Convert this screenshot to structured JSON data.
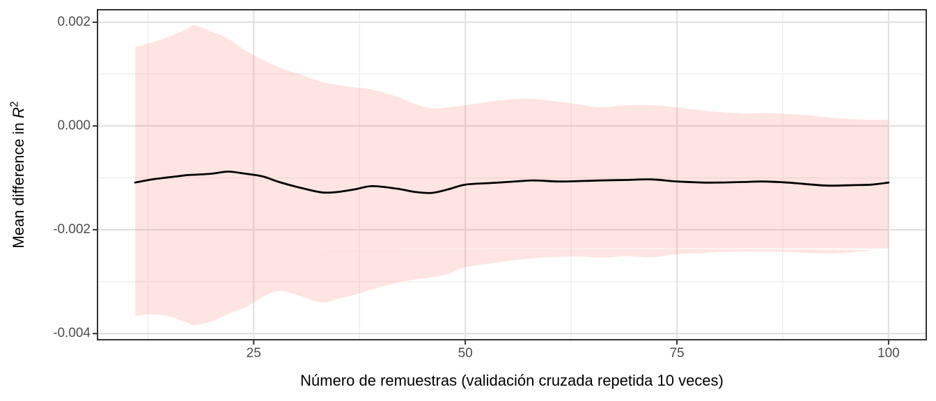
{
  "figure": {
    "x_title": "Número de remuestras (validación cruzada repetida 10 veces)",
    "y_title_prefix": "Mean difference in ",
    "y_title_math": "R",
    "y_title_sup": "2"
  },
  "chart_data": {
    "type": "line",
    "subtype": "line-with-confidence-ribbon",
    "title": "",
    "xlabel": "Número de remuestras (validación cruzada repetida 10 veces)",
    "ylabel": "Mean difference in R^2",
    "x": [
      11,
      13,
      15,
      17,
      18,
      20,
      22,
      24,
      26,
      28,
      30,
      33,
      35,
      37,
      39,
      42,
      44,
      46,
      48,
      50,
      53,
      55,
      58,
      61,
      64,
      66,
      69,
      72,
      75,
      78,
      80,
      83,
      85,
      88,
      91,
      93,
      96,
      98,
      100
    ],
    "series": [
      {
        "name": "mean difference",
        "values": [
          -0.00109,
          -0.00103,
          -0.00099,
          -0.00095,
          -0.00094,
          -0.00092,
          -0.00088,
          -0.00092,
          -0.00097,
          -0.00108,
          -0.00117,
          -0.00128,
          -0.00127,
          -0.00122,
          -0.00116,
          -0.00121,
          -0.00127,
          -0.00129,
          -0.00122,
          -0.00113,
          -0.0011,
          -0.00108,
          -0.00105,
          -0.00107,
          -0.00106,
          -0.00105,
          -0.00104,
          -0.00103,
          -0.00107,
          -0.00109,
          -0.00109,
          -0.00108,
          -0.00107,
          -0.00109,
          -0.00113,
          -0.00115,
          -0.00114,
          -0.00113,
          -0.00109
        ]
      }
    ],
    "ribbon": {
      "upper": [
        0.00152,
        0.00161,
        0.00172,
        0.00186,
        0.00194,
        0.00182,
        0.00168,
        0.00146,
        0.00128,
        0.00113,
        0.00102,
        0.00085,
        0.00079,
        0.00074,
        0.0007,
        0.00056,
        0.00043,
        0.00034,
        0.00036,
        0.0004,
        0.00047,
        0.00051,
        0.00052,
        0.00047,
        0.0004,
        0.00036,
        0.0004,
        0.0004,
        0.00036,
        0.0003,
        0.00027,
        0.00024,
        0.00025,
        0.00023,
        0.0002,
        0.00016,
        0.00013,
        0.00012,
        0.00012
      ],
      "lower": [
        -0.00366,
        -0.00363,
        -0.00367,
        -0.00378,
        -0.00384,
        -0.00377,
        -0.00362,
        -0.0035,
        -0.0033,
        -0.00318,
        -0.00325,
        -0.0034,
        -0.00333,
        -0.00325,
        -0.00315,
        -0.00302,
        -0.00296,
        -0.00292,
        -0.00285,
        -0.00272,
        -0.00265,
        -0.0026,
        -0.00255,
        -0.00252,
        -0.00252,
        -0.00254,
        -0.00251,
        -0.00253,
        -0.00247,
        -0.00245,
        -0.00243,
        -0.00242,
        -0.00242,
        -0.00243,
        -0.00245,
        -0.00246,
        -0.00243,
        -0.0024,
        -0.00236
      ]
    },
    "x_ticks": [
      25,
      50,
      75,
      100
    ],
    "x_tick_labels": [
      "25",
      "50",
      "75",
      "100"
    ],
    "x_minor_ticks": [
      12.5,
      37.5,
      62.5,
      87.5
    ],
    "y_ticks": [
      0.002,
      0,
      -0.002,
      -0.004
    ],
    "y_tick_labels": [
      "0.002",
      "0.000",
      "-0.002",
      "-0.004"
    ],
    "y_minor_ticks": [
      0.001,
      -0.001,
      -0.003
    ],
    "xlim": [
      6.55,
      104.45
    ],
    "ylim": [
      -0.00412,
      0.00224
    ],
    "grid": true,
    "legend": false,
    "colors": {
      "ribbon_fill": "#F8766D",
      "ribbon_opacity": 0.2,
      "line": "#000000",
      "grid_major": "#E2E2E2",
      "grid_minor": "#F0F0F0",
      "panel_border": "#333333",
      "tick_mark": "#333333",
      "tick_label": "#4D4D4D",
      "background": "#FFFFFF"
    }
  }
}
